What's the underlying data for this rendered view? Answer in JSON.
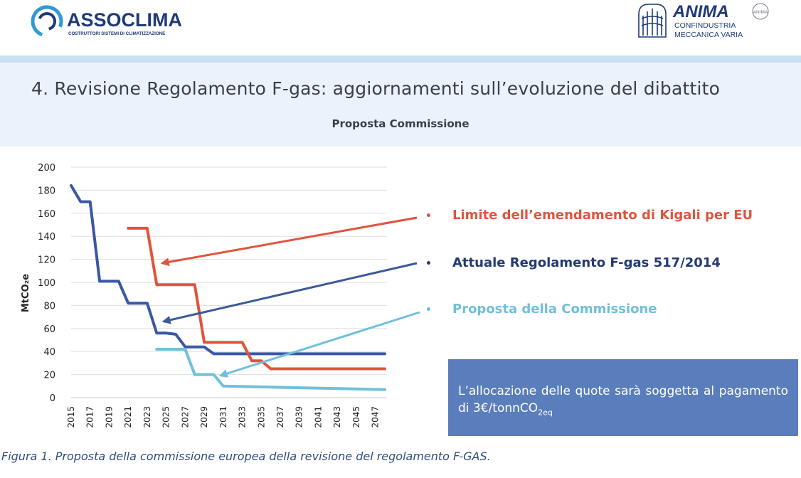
{
  "header": {
    "left_logo": {
      "name": "ASSOCLIMA",
      "tagline": "COSTRUTTORI SISTEMI DI CLIMATIZZAZIONE"
    },
    "right_logo": {
      "name": "ANIMA",
      "line1": "CONFINDUSTRIA",
      "line2": "MECCANICA VARIA",
      "badge": "ANIMA"
    }
  },
  "slide": {
    "title": "4. Revisione Regolamento F-gas: aggiornamenti sull’evoluzione del dibattito",
    "subtitle": "Proposta Commissione"
  },
  "chart_data": {
    "type": "line",
    "ylabel": "MtCO₂e",
    "ylim": [
      0,
      200
    ],
    "yticks": [
      0,
      20,
      40,
      60,
      80,
      100,
      120,
      140,
      160,
      180,
      200
    ],
    "xticks": [
      "2015",
      "2017",
      "2019",
      "2021",
      "2023",
      "2025",
      "2027",
      "2029",
      "2031",
      "2033",
      "2035",
      "2037",
      "2039",
      "2041",
      "2043",
      "2045",
      "2047"
    ],
    "xlim": [
      2015,
      2048
    ],
    "grid": true,
    "series": [
      {
        "name": "Attuale Regolamento F-gas 517/2014",
        "color": "#3a57a6",
        "points": [
          [
            2015,
            184
          ],
          [
            2016,
            170
          ],
          [
            2017,
            170
          ],
          [
            2018,
            101
          ],
          [
            2020,
            101
          ],
          [
            2021,
            82
          ],
          [
            2023,
            82
          ],
          [
            2024,
            56
          ],
          [
            2025,
            56
          ],
          [
            2026,
            55
          ],
          [
            2027,
            44
          ],
          [
            2029,
            44
          ],
          [
            2030,
            38
          ],
          [
            2048,
            38
          ]
        ]
      },
      {
        "name": "Limite dell’emendamento di Kigali per EU",
        "color": "#e0543c",
        "points": [
          [
            2021,
            147
          ],
          [
            2023,
            147
          ],
          [
            2024,
            98
          ],
          [
            2028,
            98
          ],
          [
            2029,
            48
          ],
          [
            2033,
            48
          ],
          [
            2034,
            32
          ],
          [
            2035,
            32
          ],
          [
            2036,
            25
          ],
          [
            2048,
            25
          ]
        ]
      },
      {
        "name": "Proposta della Commissione",
        "color": "#6fc0db",
        "points": [
          [
            2024,
            42
          ],
          [
            2027,
            42
          ],
          [
            2028,
            20
          ],
          [
            2030,
            20
          ],
          [
            2031,
            10
          ],
          [
            2048,
            7
          ]
        ]
      }
    ]
  },
  "legend": [
    {
      "label": "Limite dell’emendamento di Kigali per EU",
      "color": "#e0543c",
      "bullet": "•"
    },
    {
      "label": "Attuale Regolamento F-gas 517/2014",
      "color": "#243a73",
      "bullet": "•"
    },
    {
      "label": "Proposta della Commissione",
      "color": "#6fc0db",
      "bullet": "•"
    }
  ],
  "info_box": {
    "text": "L’allocazione delle quote sarà soggetta al pagamento di 3€/tonnCO",
    "subscript": "2eq"
  },
  "caption": "Figura 1. Proposta della commissione europea della revisione del regolamento F-GAS."
}
